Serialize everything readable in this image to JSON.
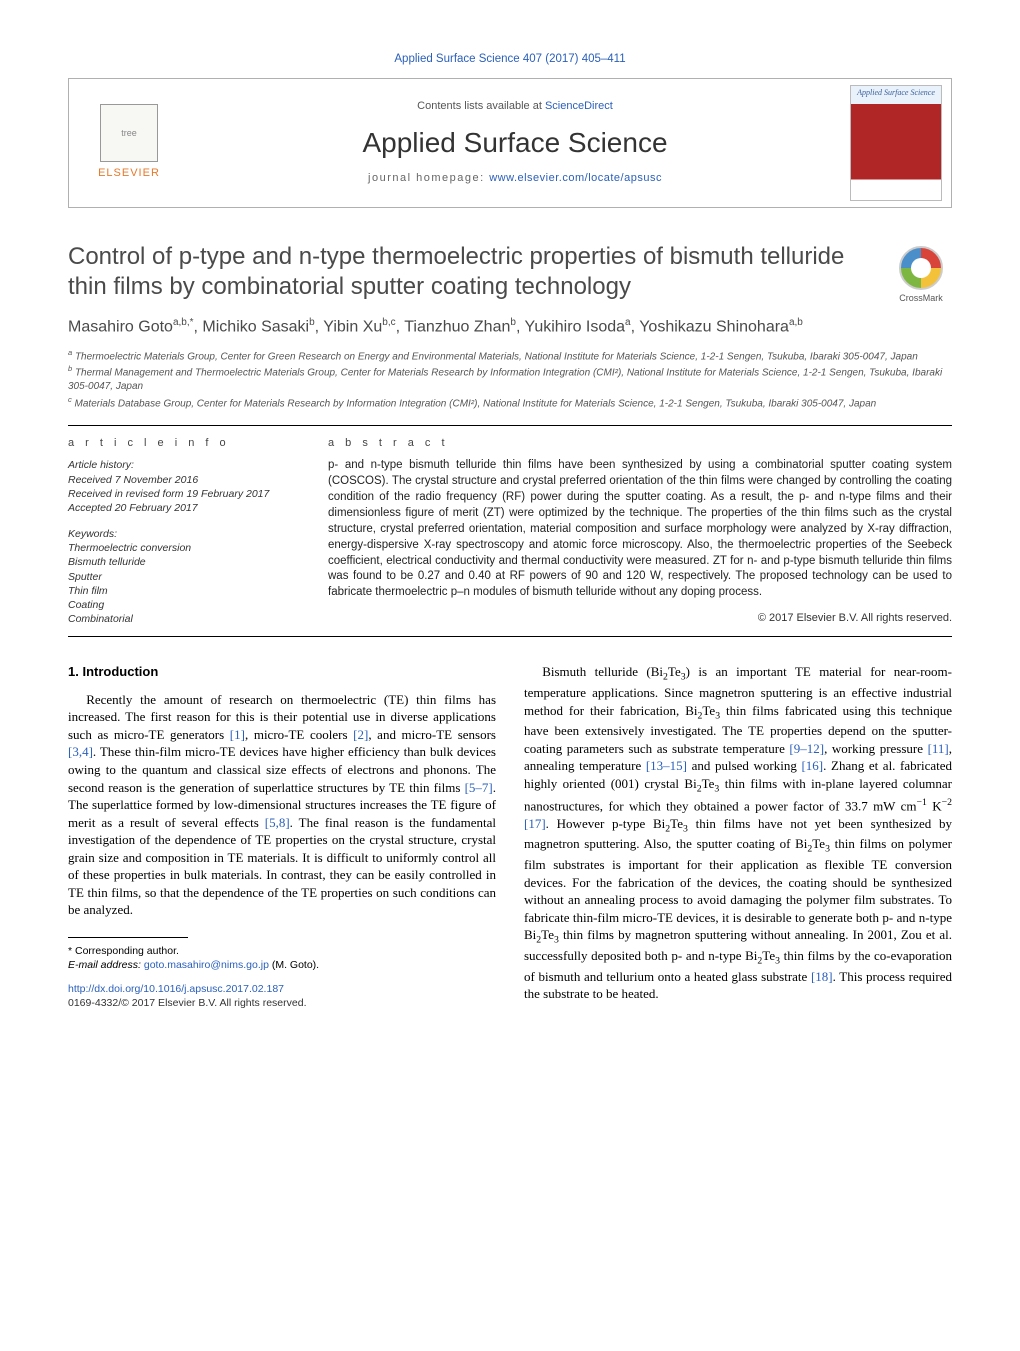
{
  "citation_line": "Applied Surface Science 407 (2017) 405–411",
  "header": {
    "contents_prefix": "Contents lists available at ",
    "contents_link": "ScienceDirect",
    "journal": "Applied Surface Science",
    "homepage_label": "journal homepage: ",
    "homepage_url": "www.elsevier.com/locate/apsusc",
    "publisher_logo_text": "ELSEVIER",
    "cover_title": "Applied Surface Science"
  },
  "crossmark_label": "CrossMark",
  "title": "Control of p-type and n-type thermoelectric properties of bismuth telluride thin films by combinatorial sputter coating technology",
  "authors_html": "Masahiro Goto<sup>a,b,*</sup>, Michiko Sasaki<sup>b</sup>, Yibin Xu<sup>b,c</sup>, Tianzhuo Zhan<sup>b</sup>, Yukihiro Isoda<sup>a</sup>, Yoshikazu Shinohara<sup>a,b</sup>",
  "affiliations": {
    "a": "Thermoelectric Materials Group, Center for Green Research on Energy and Environmental Materials, National Institute for Materials Science, 1-2-1 Sengen, Tsukuba, Ibaraki 305-0047, Japan",
    "b": "Thermal Management and Thermoelectric Materials Group, Center for Materials Research by Information Integration (CMI²), National Institute for Materials Science, 1-2-1 Sengen, Tsukuba, Ibaraki 305-0047, Japan",
    "c": "Materials Database Group, Center for Materials Research by Information Integration (CMI²), National Institute for Materials Science, 1-2-1 Sengen, Tsukuba, Ibaraki 305-0047, Japan"
  },
  "article_info": {
    "heading": "a r t i c l e   i n f o",
    "history_label": "Article history:",
    "history": [
      "Received 7 November 2016",
      "Received in revised form 19 February 2017",
      "Accepted 20 February 2017"
    ],
    "keywords_label": "Keywords:",
    "keywords": [
      "Thermoelectric conversion",
      "Bismuth telluride",
      "Sputter",
      "Thin film",
      "Coating",
      "Combinatorial"
    ]
  },
  "abstract": {
    "heading": "a b s t r a c t",
    "text": "p- and n-type bismuth telluride thin films have been synthesized by using a combinatorial sputter coating system (COSCOS). The crystal structure and crystal preferred orientation of the thin films were changed by controlling the coating condition of the radio frequency (RF) power during the sputter coating. As a result, the p- and n-type films and their dimensionless figure of merit (ZT) were optimized by the technique. The properties of the thin films such as the crystal structure, crystal preferred orientation, material composition and surface morphology were analyzed by X-ray diffraction, energy-dispersive X-ray spectroscopy and atomic force microscopy. Also, the thermoelectric properties of the Seebeck coefficient, electrical conductivity and thermal conductivity were measured. ZT for n- and p-type bismuth telluride thin films was found to be 0.27 and 0.40 at RF powers of 90 and 120 W, respectively. The proposed technology can be used to fabricate thermoelectric p–n modules of bismuth telluride without any doping process.",
    "copyright": "© 2017 Elsevier B.V. All rights reserved."
  },
  "body": {
    "section_heading": "1. Introduction",
    "col1_p1": "Recently the amount of research on thermoelectric (TE) thin films has increased. The first reason for this is their potential use in diverse applications such as micro-TE generators [1], micro-TE coolers [2], and micro-TE sensors [3,4]. These thin-film micro-TE devices have higher efficiency than bulk devices owing to the quantum and classical size effects of electrons and phonons. The second reason is the generation of superlattice structures by TE thin films [5–7]. The superlattice formed by low-dimensional structures increases the TE figure of merit as a result of several effects [5,8]. The final reason is the fundamental investigation of the dependence of TE properties on the crystal structure, crystal grain size and composition in TE materials. It is difficult to uniformly control all of these properties in bulk materials. In contrast, they can be easily controlled in TE thin films, so that the dependence of the TE properties on such conditions can be analyzed.",
    "col2_p1": "Bismuth telluride (Bi₂Te₃) is an important TE material for near-room-temperature applications. Since magnetron sputtering is an effective industrial method for their fabrication, Bi₂Te₃ thin films fabricated using this technique have been extensively investigated. The TE properties depend on the sputter-coating parameters such as substrate temperature [9–12], working pressure [11], annealing temperature [13–15] and pulsed working [16]. Zhang et al. fabricated highly oriented (001) crystal Bi₂Te₃ thin films with in-plane layered columnar nanostructures, for which they obtained a power factor of 33.7 mW cm⁻¹ K⁻² [17]. However p-type Bi₂Te₃ thin films have not yet been synthesized by magnetron sputtering. Also, the sputter coating of Bi₂Te₃ thin films on polymer film substrates is important for their application as flexible TE conversion devices. For the fabrication of the devices, the coating should be synthesized without an annealing process to avoid damaging the polymer film substrates. To fabricate thin-film micro-TE devices, it is desirable to generate both p- and n-type Bi₂Te₃ thin films by magnetron sputtering without annealing. In 2001, Zou et al. successfully deposited both p- and n-type Bi₂Te₃ thin films by the co-evaporation of bismuth and tellurium onto a heated glass substrate [18]. This process required the substrate to be heated."
  },
  "footnotes": {
    "corr_label": "* Corresponding author.",
    "email_label": "E-mail address: ",
    "email": "goto.masahiro@nims.go.jp",
    "email_person": " (M. Goto)."
  },
  "doi": {
    "url": "http://dx.doi.org/10.1016/j.apsusc.2017.02.187",
    "issn_line": "0169-4332/© 2017 Elsevier B.V. All rights reserved."
  },
  "colors": {
    "link": "#2a5fba",
    "publisher_orange": "#e6792b",
    "cover_red": "#b02626"
  },
  "citations_map": {
    "c1": "[1]",
    "c2": "[2]",
    "c34": "[3,4]",
    "c57": "[5–7]",
    "c58": "[5,8]",
    "c912": "[9–12]",
    "c11": "[11]",
    "c1315": "[13–15]",
    "c16": "[16]",
    "c17": "[17]",
    "c18": "[18]"
  }
}
